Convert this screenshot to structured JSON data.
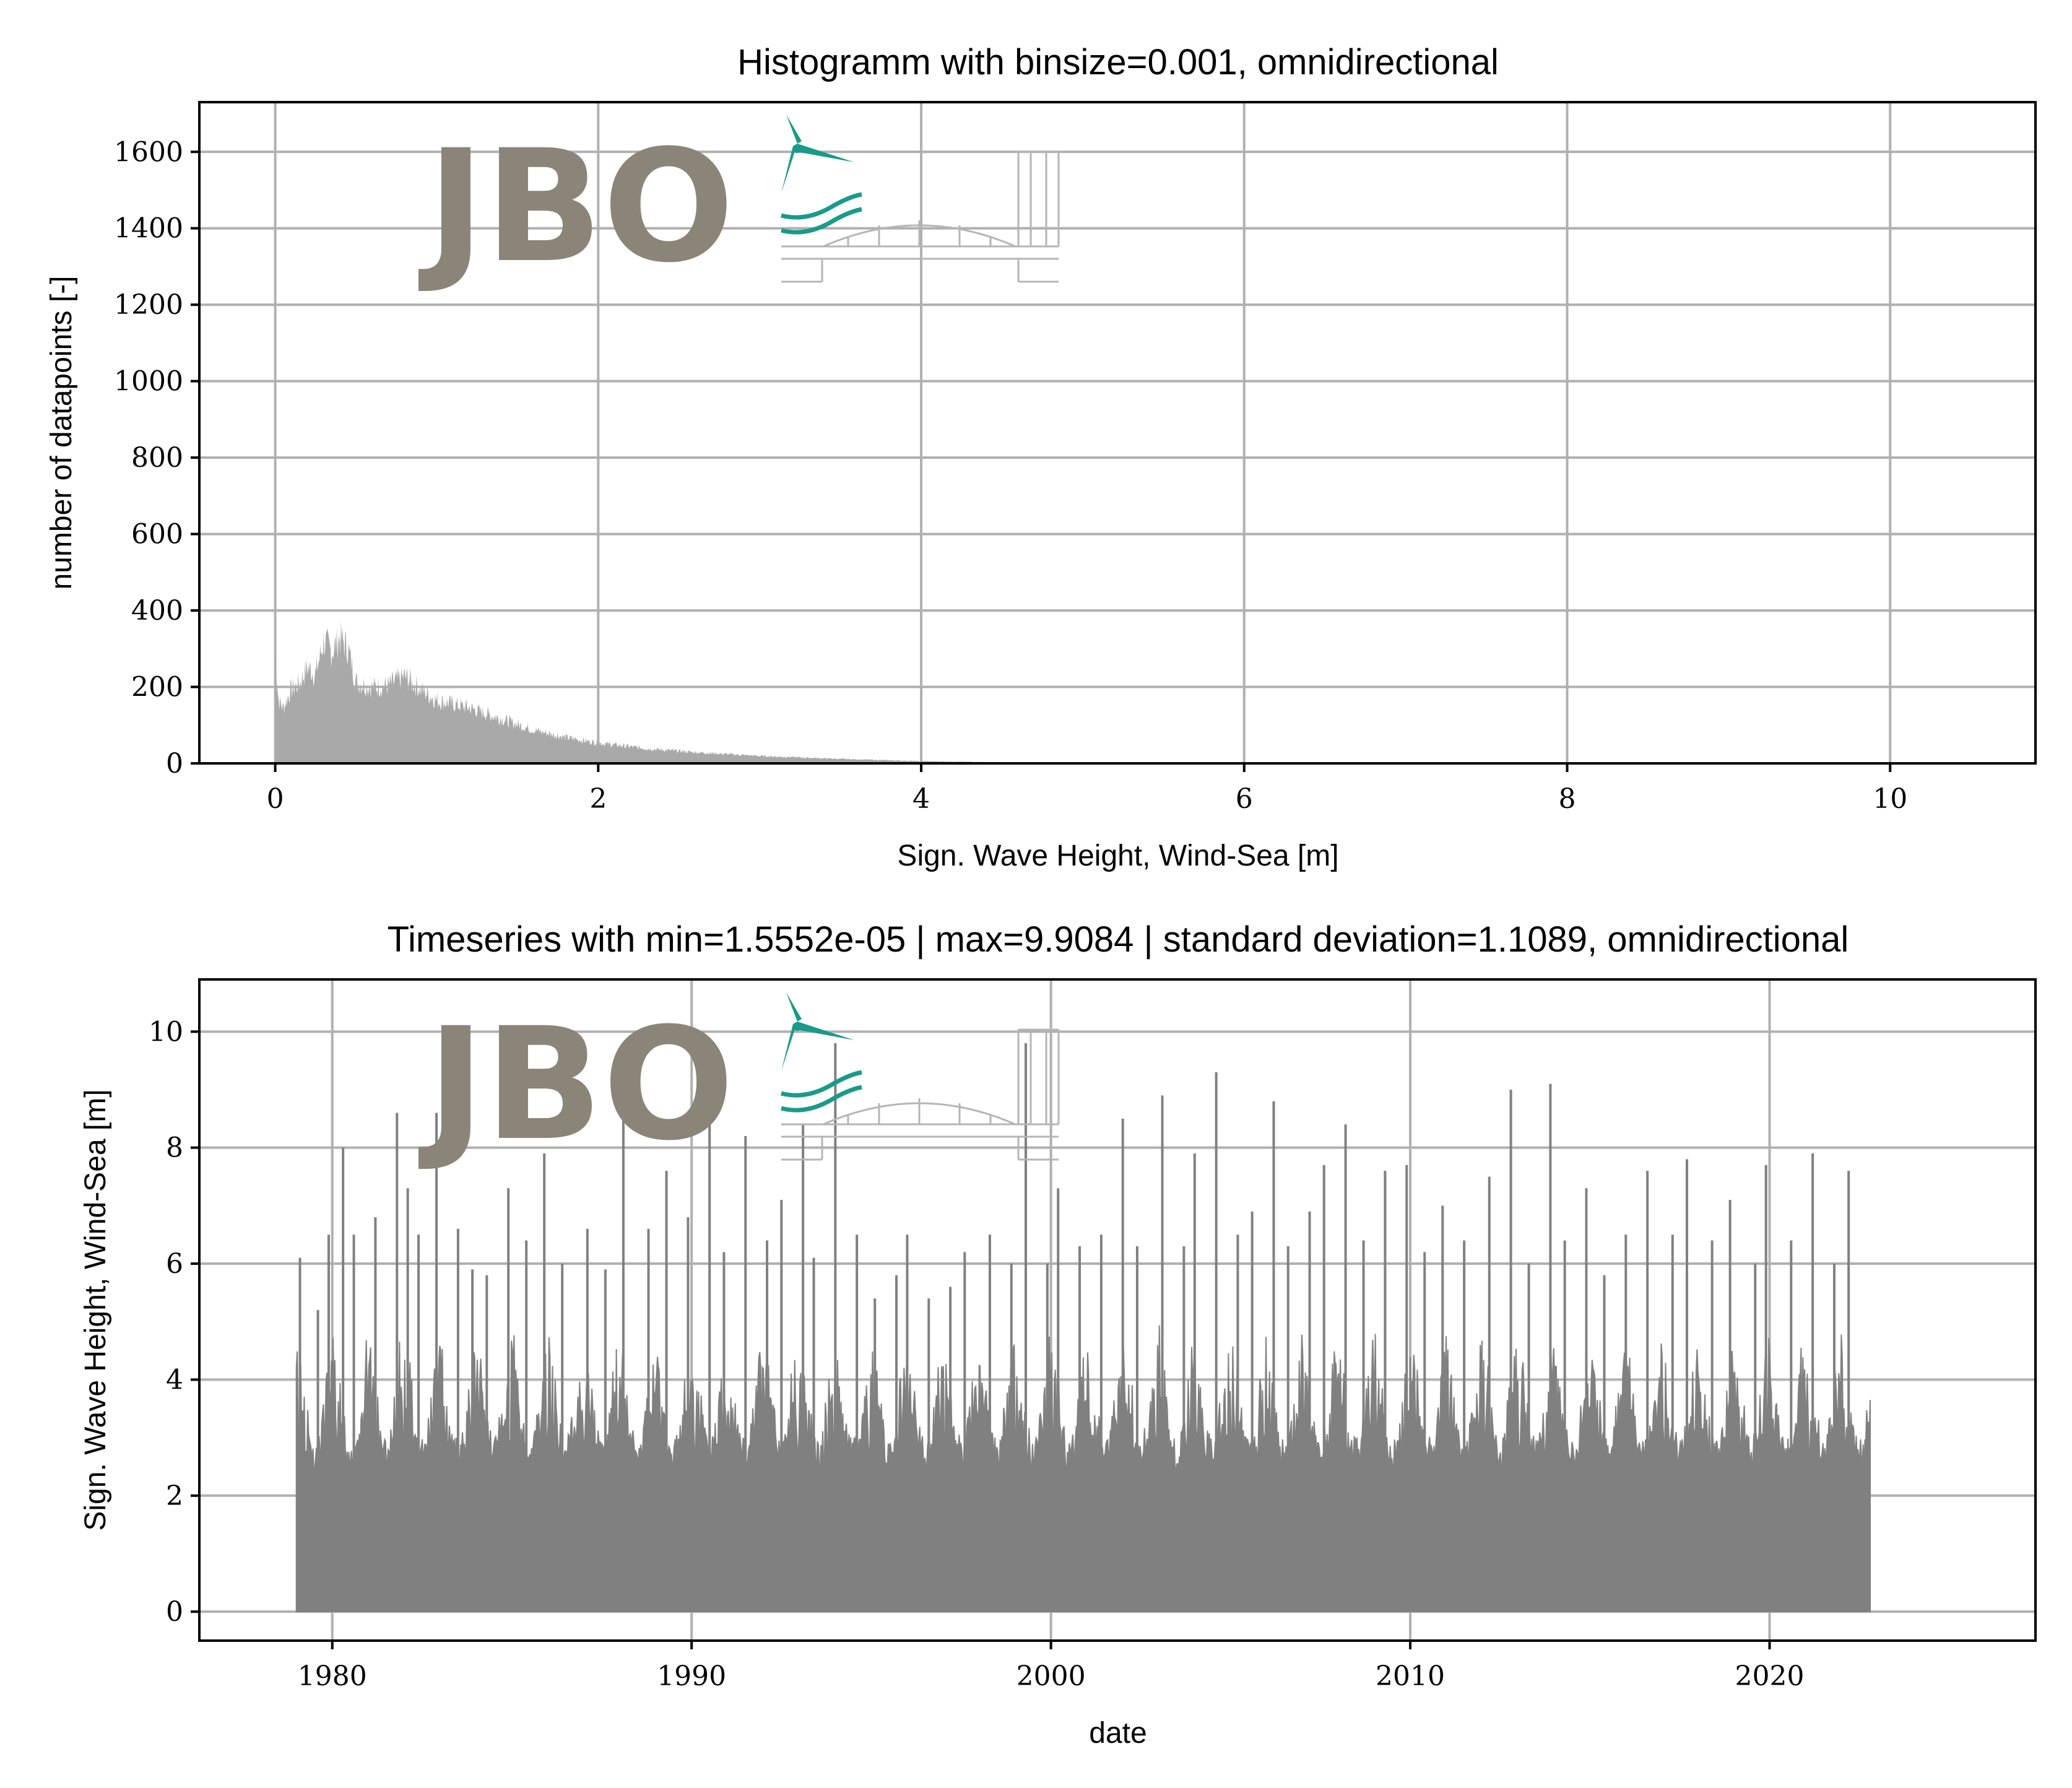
{
  "colors": {
    "hist_fill": "#a9a9a9",
    "ts_fill": "#808080",
    "grid": "#b0b0b0",
    "logo_gray": "#8a8578",
    "logo_teal": "#1a9a8a"
  },
  "logo": {
    "text": "JBO"
  },
  "chart_data": [
    {
      "type": "bar",
      "title": "Histogramm with binsize=0.001, omnidirectional",
      "xlabel": "Sign. Wave Height, Wind-Sea [m]",
      "ylabel": "number of datapoints [-]",
      "xlim": [
        -0.47,
        10.9
      ],
      "ylim": [
        0,
        1730
      ],
      "xticks": [
        0,
        2,
        4,
        6,
        8,
        10
      ],
      "yticks": [
        0,
        200,
        400,
        600,
        800,
        1000,
        1200,
        1400,
        1600
      ],
      "grid": true,
      "envelope_x": [
        0,
        0.02,
        0.05,
        0.1,
        0.15,
        0.2,
        0.25,
        0.3,
        0.35,
        0.4,
        0.45,
        0.5,
        0.6,
        0.7,
        0.8,
        0.9,
        1.0,
        1.2,
        1.4,
        1.6,
        1.8,
        2.0,
        2.3,
        2.6,
        3.0,
        3.5,
        4.0,
        4.5,
        5.0,
        5.5,
        6.0
      ],
      "envelope_y": [
        300,
        170,
        150,
        200,
        215,
        260,
        240,
        330,
        300,
        340,
        310,
        220,
        205,
        210,
        235,
        200,
        170,
        150,
        120,
        90,
        70,
        55,
        40,
        30,
        20,
        12,
        6,
        3,
        2,
        1,
        0
      ]
    },
    {
      "type": "area",
      "title": "Timeseries with min=1.5552e-05 | max=9.9084 | standard deviation=1.1089, omnidirectional",
      "xlabel": "date",
      "ylabel": "Sign. Wave Height, Wind-Sea [m]",
      "xlim": [
        1976.3,
        2027.4
      ],
      "ylim": [
        -0.5,
        10.9
      ],
      "xticks": [
        1980,
        1990,
        2000,
        2010,
        2020
      ],
      "yticks": [
        0,
        2,
        4,
        6,
        8,
        10
      ],
      "grid": true,
      "x_start": 1979.0,
      "x_end": 2022.8,
      "spikes_x": [
        1979.1,
        1979.6,
        1979.9,
        1980.3,
        1980.6,
        1981.2,
        1981.8,
        1982.1,
        1982.4,
        1982.9,
        1983.5,
        1983.9,
        1984.3,
        1984.9,
        1985.4,
        1985.9,
        1986.4,
        1987.1,
        1987.6,
        1988.1,
        1988.8,
        1989.3,
        1989.9,
        1990.5,
        1990.9,
        1991.5,
        1992.1,
        1992.5,
        1993.1,
        1993.4,
        1994.0,
        1994.6,
        1995.1,
        1995.7,
        1996.0,
        1996.6,
        1997.2,
        1997.6,
        1998.3,
        1998.9,
        1999.3,
        1999.9,
        2000.2,
        2000.8,
        2001.4,
        2002.0,
        2002.4,
        2003.1,
        2003.7,
        2004.0,
        2004.6,
        2005.2,
        2005.6,
        2006.2,
        2006.6,
        2007.2,
        2007.6,
        2008.2,
        2008.7,
        2009.3,
        2009.9,
        2010.4,
        2010.9,
        2011.5,
        2012.2,
        2012.8,
        2013.3,
        2013.9,
        2014.3,
        2014.9,
        2015.4,
        2016.0,
        2016.6,
        2017.3,
        2017.7,
        2018.4,
        2018.9,
        2019.6,
        2019.9,
        2020.6,
        2021.2,
        2021.8,
        2022.2
      ],
      "spikes_y": [
        6.1,
        5.2,
        6.5,
        8.0,
        6.5,
        6.8,
        8.6,
        7.3,
        6.5,
        8.6,
        6.6,
        5.9,
        5.8,
        7.3,
        6.4,
        7.9,
        6.0,
        6.6,
        5.9,
        8.7,
        6.6,
        7.6,
        6.8,
        9.3,
        6.2,
        8.2,
        6.4,
        7.1,
        8.4,
        6.1,
        9.8,
        6.5,
        5.4,
        5.8,
        6.5,
        5.4,
        5.6,
        6.2,
        6.5,
        6.0,
        9.8,
        6.0,
        7.3,
        6.3,
        6.5,
        8.5,
        6.3,
        8.9,
        6.3,
        7.9,
        9.3,
        6.5,
        6.9,
        8.8,
        6.3,
        6.9,
        7.7,
        8.4,
        6.4,
        7.6,
        7.7,
        6.2,
        7.0,
        6.4,
        7.5,
        9.0,
        6.0,
        9.1,
        6.4,
        7.3,
        5.8,
        6.5,
        7.6,
        6.5,
        7.8,
        6.4,
        7.1,
        6.0,
        7.7,
        6.4,
        7.9,
        6.0,
        7.6
      ]
    }
  ]
}
